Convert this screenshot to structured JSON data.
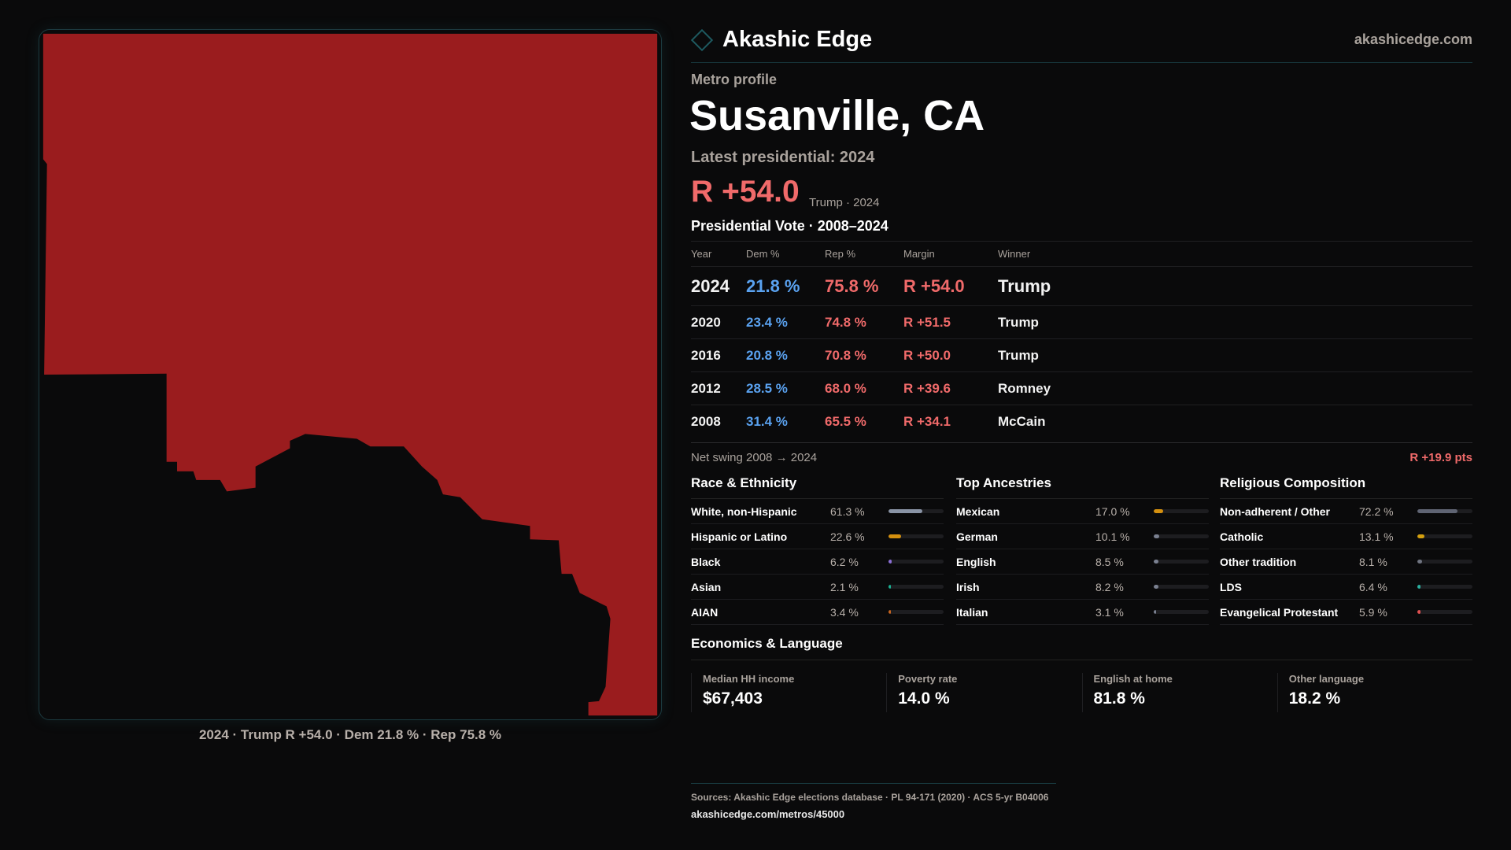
{
  "brand": "Akashic Edge",
  "site": "akashicedge.com",
  "kicker": "Metro profile",
  "title": "Susanville, CA",
  "latest": "Latest presidential: 2024",
  "big_margin": "R +54.0",
  "big_sub": "Trump · 2024",
  "caption": "2024 · Trump R +54.0 · Dem 21.8 % · Rep 75.8 %",
  "vote": {
    "title": "Presidential Vote · 2008–2024",
    "headers": [
      "Year",
      "Dem %",
      "Rep %",
      "Margin",
      "Winner"
    ],
    "rows": [
      [
        "2024",
        "21.8 %",
        "75.8 %",
        "R +54.0",
        "Trump"
      ],
      [
        "2020",
        "23.4 %",
        "74.8 %",
        "R +51.5",
        "Trump"
      ],
      [
        "2016",
        "20.8 %",
        "70.8 %",
        "R +50.0",
        "Trump"
      ],
      [
        "2012",
        "28.5 %",
        "68.0 %",
        "R +39.6",
        "Romney"
      ],
      [
        "2008",
        "31.4 %",
        "65.5 %",
        "R +34.1",
        "McCain"
      ]
    ]
  },
  "swing": {
    "label": "Net swing 2008 → 2024",
    "value": "R +19.9 pts"
  },
  "columns": [
    {
      "title": "Race & Ethnicity",
      "items": [
        {
          "label": "White, non-Hispanic",
          "value": "61.3 %",
          "pct": 61.3,
          "color": "#8a94a6"
        },
        {
          "label": "Hispanic or Latino",
          "value": "22.6 %",
          "pct": 22.6,
          "color": "#d4900f"
        },
        {
          "label": "Black",
          "value": "6.2 %",
          "pct": 6.2,
          "color": "#8b6fd6"
        },
        {
          "label": "Asian",
          "value": "2.1 %",
          "pct": 2.1,
          "color": "#1ab394"
        },
        {
          "label": "AIAN",
          "value": "3.4 %",
          "pct": 3.4,
          "color": "#c8641e"
        }
      ]
    },
    {
      "title": "Top Ancestries",
      "items": [
        {
          "label": "Mexican",
          "value": "17.0 %",
          "pct": 17.0,
          "color": "#d4900f"
        },
        {
          "label": "German",
          "value": "10.1 %",
          "pct": 10.1,
          "color": "#7a8090"
        },
        {
          "label": "English",
          "value": "8.5 %",
          "pct": 8.5,
          "color": "#7a8090"
        },
        {
          "label": "Irish",
          "value": "8.2 %",
          "pct": 8.2,
          "color": "#7a8090"
        },
        {
          "label": "Italian",
          "value": "3.1 %",
          "pct": 3.1,
          "color": "#7a8090"
        }
      ]
    },
    {
      "title": "Religious Composition",
      "items": [
        {
          "label": "Non-adherent / Other",
          "value": "72.2 %",
          "pct": 72.2,
          "color": "#5f6473"
        },
        {
          "label": "Catholic",
          "value": "13.1 %",
          "pct": 13.1,
          "color": "#d4a00f"
        },
        {
          "label": "Other tradition",
          "value": "8.1 %",
          "pct": 8.1,
          "color": "#6f7480"
        },
        {
          "label": "LDS",
          "value": "6.4 %",
          "pct": 6.4,
          "color": "#2ab0a0"
        },
        {
          "label": "Evangelical Protestant",
          "value": "5.9 %",
          "pct": 5.9,
          "color": "#e05050"
        }
      ]
    }
  ],
  "econ": {
    "title": "Economics & Language",
    "items": [
      {
        "label": "Median HH income",
        "value": "$67,403"
      },
      {
        "label": "Poverty rate",
        "value": "14.0 %"
      },
      {
        "label": "English at home",
        "value": "81.8 %"
      },
      {
        "label": "Other language",
        "value": "18.2 %"
      }
    ]
  },
  "sources": "Sources: Akashic Edge elections database · PL 94-171 (2020) · ACS 5-yr B04006",
  "url": "akashicedge.com/metros/45000",
  "colors": {
    "rep_fill": "#9a1c1e",
    "dem": "#5aa2f0",
    "rep": "#f06a6a"
  }
}
